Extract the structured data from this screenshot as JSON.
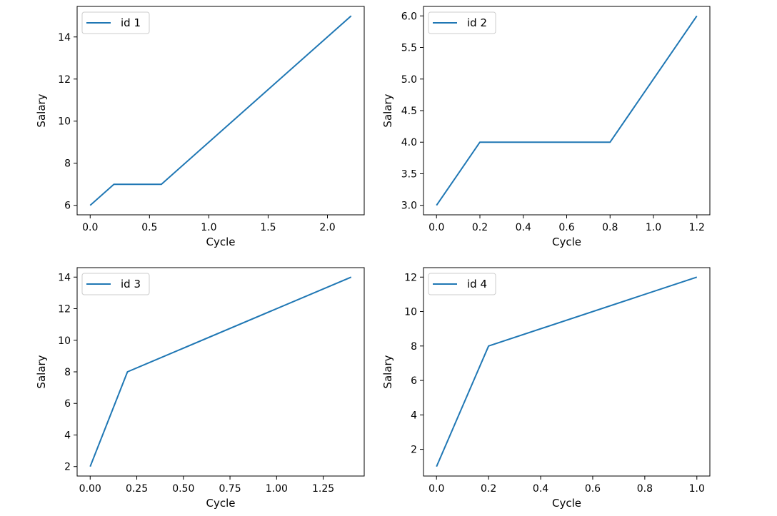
{
  "chart_data": [
    {
      "type": "line",
      "xlabel": "Cycle",
      "ylabel": "Salary",
      "xlim": [
        -0.11,
        2.31
      ],
      "ylim": [
        5.55,
        15.45
      ],
      "xticks": [
        0.0,
        0.5,
        1.0,
        1.5,
        2.0
      ],
      "xtick_labels": [
        "0.0",
        "0.5",
        "1.0",
        "1.5",
        "2.0"
      ],
      "yticks": [
        6,
        8,
        10,
        12,
        14
      ],
      "ytick_labels": [
        "6",
        "8",
        "10",
        "12",
        "14"
      ],
      "grid": false,
      "legend_position": "upper-left",
      "series": [
        {
          "name": "id 1",
          "color": "#1f77b4",
          "x": [
            0.0,
            0.2,
            0.6,
            2.2
          ],
          "y": [
            6,
            7,
            7,
            15
          ]
        }
      ]
    },
    {
      "type": "line",
      "xlabel": "Cycle",
      "ylabel": "Salary",
      "xlim": [
        -0.06,
        1.26
      ],
      "ylim": [
        2.85,
        6.15
      ],
      "xticks": [
        0.0,
        0.2,
        0.4,
        0.6,
        0.8,
        1.0,
        1.2
      ],
      "xtick_labels": [
        "0.0",
        "0.2",
        "0.4",
        "0.6",
        "0.8",
        "1.0",
        "1.2"
      ],
      "yticks": [
        3.0,
        3.5,
        4.0,
        4.5,
        5.0,
        5.5,
        6.0
      ],
      "ytick_labels": [
        "3.0",
        "3.5",
        "4.0",
        "4.5",
        "5.0",
        "5.5",
        "6.0"
      ],
      "grid": false,
      "legend_position": "upper-left",
      "series": [
        {
          "name": "id 2",
          "color": "#1f77b4",
          "x": [
            0.0,
            0.2,
            0.8,
            1.2
          ],
          "y": [
            3,
            4,
            4,
            6
          ]
        }
      ]
    },
    {
      "type": "line",
      "xlabel": "Cycle",
      "ylabel": "Salary",
      "xlim": [
        -0.07,
        1.47
      ],
      "ylim": [
        1.4,
        14.6
      ],
      "xticks": [
        0.0,
        0.25,
        0.5,
        0.75,
        1.0,
        1.25
      ],
      "xtick_labels": [
        "0.00",
        "0.25",
        "0.50",
        "0.75",
        "1.00",
        "1.25"
      ],
      "yticks": [
        2,
        4,
        6,
        8,
        10,
        12,
        14
      ],
      "ytick_labels": [
        "2",
        "4",
        "6",
        "8",
        "10",
        "12",
        "14"
      ],
      "grid": false,
      "legend_position": "upper-left",
      "series": [
        {
          "name": "id 3",
          "color": "#1f77b4",
          "x": [
            0.0,
            0.2,
            1.4
          ],
          "y": [
            2,
            8,
            14
          ]
        }
      ]
    },
    {
      "type": "line",
      "xlabel": "Cycle",
      "ylabel": "Salary",
      "xlim": [
        -0.05,
        1.05
      ],
      "ylim": [
        0.45,
        12.55
      ],
      "xticks": [
        0.0,
        0.2,
        0.4,
        0.6,
        0.8,
        1.0
      ],
      "xtick_labels": [
        "0.0",
        "0.2",
        "0.4",
        "0.6",
        "0.8",
        "1.0"
      ],
      "yticks": [
        2,
        4,
        6,
        8,
        10,
        12
      ],
      "ytick_labels": [
        "2",
        "4",
        "6",
        "8",
        "10",
        "12"
      ],
      "grid": false,
      "legend_position": "upper-left",
      "series": [
        {
          "name": "id 4",
          "color": "#1f77b4",
          "x": [
            0.0,
            0.2,
            1.0
          ],
          "y": [
            1,
            8,
            12
          ]
        }
      ]
    }
  ]
}
